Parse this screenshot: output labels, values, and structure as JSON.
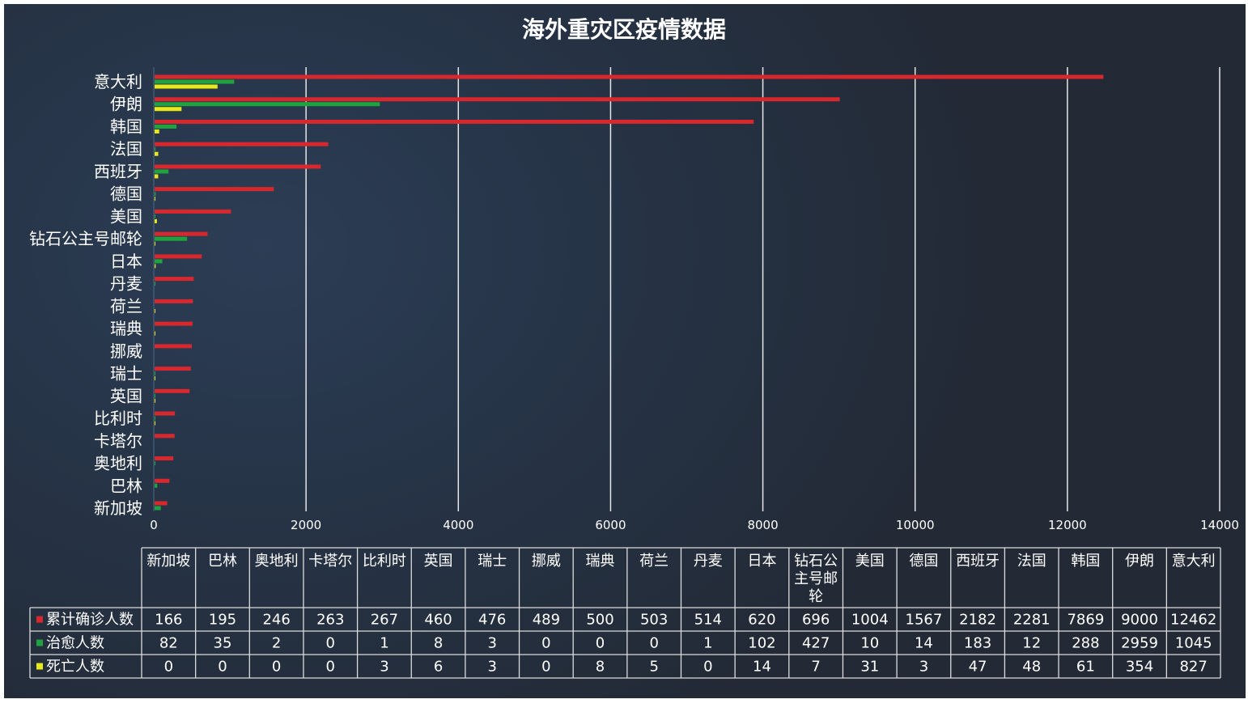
{
  "chart_data": {
    "type": "bar",
    "orientation": "horizontal",
    "title": "海外重灾区疫情数据",
    "categories": [
      "新加坡",
      "巴林",
      "奥地利",
      "卡塔尔",
      "比利时",
      "英国",
      "瑞士",
      "挪威",
      "瑞典",
      "荷兰",
      "丹麦",
      "日本",
      "钻石公主号邮轮",
      "美国",
      "德国",
      "西班牙",
      "法国",
      "韩国",
      "伊朗",
      "意大利"
    ],
    "series": [
      {
        "name": "累计确诊人数",
        "color": "#d8282e",
        "values": [
          166,
          195,
          246,
          263,
          267,
          460,
          476,
          489,
          500,
          503,
          514,
          620,
          696,
          1004,
          1567,
          2182,
          2281,
          7869,
          9000,
          12462
        ]
      },
      {
        "name": "治愈人数",
        "color": "#1fa33e",
        "values": [
          82,
          35,
          2,
          0,
          1,
          8,
          3,
          0,
          0,
          0,
          1,
          102,
          427,
          10,
          14,
          183,
          12,
          288,
          2959,
          1045
        ]
      },
      {
        "name": "死亡人数",
        "color": "#e8e81a",
        "values": [
          0,
          0,
          0,
          0,
          3,
          6,
          3,
          0,
          8,
          5,
          0,
          14,
          7,
          31,
          3,
          47,
          48,
          61,
          354,
          827
        ]
      }
    ],
    "xlim": [
      0,
      14000
    ],
    "xticks": [
      0,
      2000,
      4000,
      6000,
      8000,
      10000,
      12000,
      14000
    ],
    "grid": true,
    "legend": "data-table-bottom"
  }
}
